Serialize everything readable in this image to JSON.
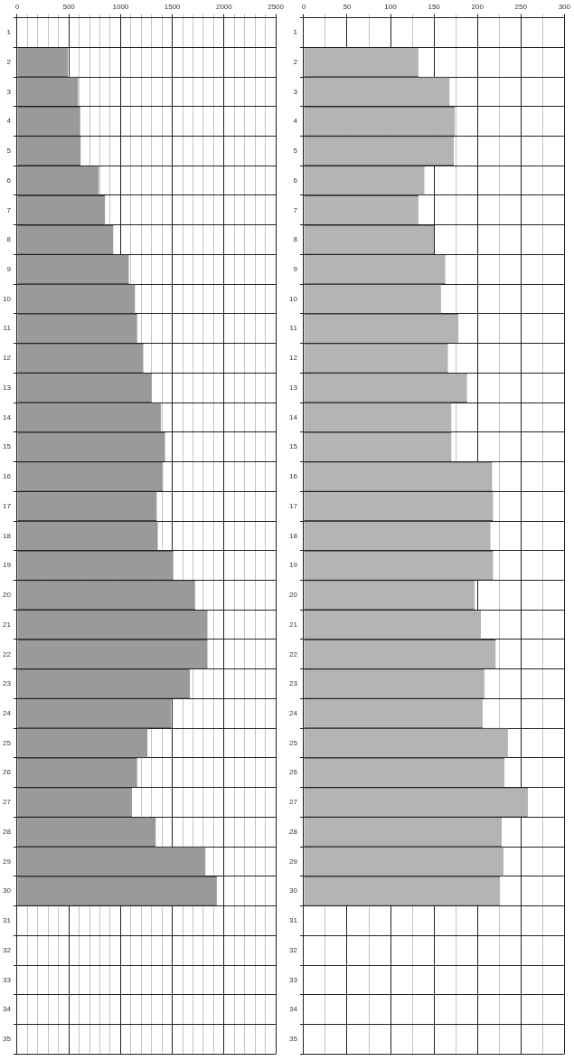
{
  "chart_data": [
    {
      "type": "bar",
      "orientation": "horizontal",
      "grid": true,
      "legend": false,
      "categories": [
        "1",
        "2",
        "3",
        "4",
        "5",
        "6",
        "7",
        "8",
        "9",
        "10",
        "11",
        "12",
        "13",
        "14",
        "15",
        "16",
        "17",
        "18",
        "19",
        "20",
        "21",
        "22",
        "23",
        "24",
        "25",
        "26",
        "27",
        "28",
        "29",
        "30",
        "31",
        "32",
        "33",
        "34",
        "35"
      ],
      "xlim": [
        0,
        2500
      ],
      "xticks": [
        0,
        {
          "value": 100,
          "label": null
        },
        {
          "value": 200,
          "label": null
        },
        {
          "value": 300,
          "label": null
        },
        {
          "value": 400,
          "label": null
        },
        500,
        {
          "value": 600,
          "label": null
        },
        {
          "value": 700,
          "label": null
        },
        {
          "value": 800,
          "label": null
        },
        {
          "value": 900,
          "label": null
        },
        1000,
        {
          "value": 1100,
          "label": null
        },
        {
          "value": 1200,
          "label": null
        },
        {
          "value": 1300,
          "label": null
        },
        {
          "value": 1400,
          "label": null
        },
        1500,
        {
          "value": 1600,
          "label": null
        },
        {
          "value": 1700,
          "label": null
        },
        {
          "value": 1800,
          "label": null
        },
        {
          "value": 1900,
          "label": null
        },
        2000,
        {
          "value": 2100,
          "label": null
        },
        {
          "value": 2200,
          "label": null
        },
        {
          "value": 2300,
          "label": null
        },
        {
          "value": 2400,
          "label": null
        },
        2500
      ],
      "color": "#9a9a9a",
      "values": [
        null,
        490,
        590,
        610,
        615,
        790,
        850,
        930,
        1080,
        1140,
        1160,
        1220,
        1300,
        1390,
        1430,
        1410,
        1350,
        1360,
        1510,
        1720,
        1840,
        1840,
        1670,
        1490,
        1260,
        1160,
        1110,
        1340,
        1820,
        1930,
        null,
        null,
        null,
        null,
        null
      ]
    },
    {
      "type": "bar",
      "orientation": "horizontal",
      "grid": true,
      "legend": false,
      "categories": [
        "1",
        "2",
        "3",
        "4",
        "5",
        "6",
        "7",
        "8",
        "9",
        "10",
        "11",
        "12",
        "13",
        "14",
        "15",
        "16",
        "17",
        "18",
        "19",
        "20",
        "21",
        "22",
        "23",
        "24",
        "25",
        "26",
        "27",
        "28",
        "29",
        "30",
        "31",
        "32",
        "33",
        "34",
        "35"
      ],
      "xlim": [
        0,
        300
      ],
      "xticks": [
        0,
        {
          "value": 25,
          "label": null
        },
        50,
        {
          "value": 75,
          "label": null
        },
        100,
        {
          "value": 125,
          "label": null
        },
        150,
        {
          "value": 175,
          "label": null
        },
        200,
        {
          "value": 225,
          "label": null
        },
        250,
        {
          "value": 275,
          "label": null
        },
        300
      ],
      "color": "#b4b4b4",
      "values": [
        null,
        132,
        168,
        174,
        173,
        139,
        132,
        150,
        163,
        158,
        178,
        166,
        188,
        170,
        170,
        217,
        218,
        215,
        218,
        197,
        204,
        221,
        208,
        206,
        235,
        231,
        258,
        228,
        230,
        226,
        null,
        null,
        null,
        null,
        null
      ]
    }
  ]
}
